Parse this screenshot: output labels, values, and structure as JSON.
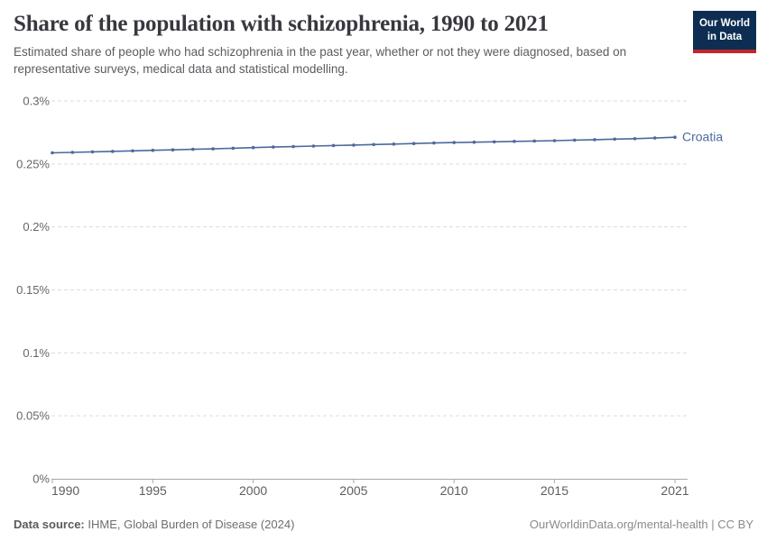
{
  "header": {
    "title": "Share of the population with schizophrenia, 1990 to 2021",
    "subtitle": "Estimated share of people who had schizophrenia in the past year, whether or not they were diagnosed, based on representative surveys, medical data and statistical modelling.",
    "logo": {
      "line1": "Our World",
      "line2": "in Data"
    }
  },
  "footer": {
    "datasource_label": "Data source:",
    "datasource_text": " IHME, Global Burden of Disease (2024)",
    "link": "OurWorldinData.org/mental-health | CC BY"
  },
  "colors": {
    "series": "#4c6a9c",
    "gridline": "#dcdcdc",
    "axis": "#a8a8a8",
    "y_tick_label": "#666666",
    "x_tick_label": "#5e5e5e",
    "title": "#37373f",
    "subtitle": "#5b5b61",
    "logo_bg": "#0d2e52",
    "logo_stripe": "#c4262e"
  },
  "chart_data": {
    "type": "line",
    "title": "Share of the population with schizophrenia, 1990 to 2021",
    "xlabel": "",
    "ylabel": "",
    "unit": "%",
    "xlim": [
      1990,
      2021
    ],
    "ylim": [
      0,
      0.3
    ],
    "grid": "horizontal-dashed",
    "legend_position": "end-of-line-label",
    "x": [
      1990,
      1991,
      1992,
      1993,
      1994,
      1995,
      1996,
      1997,
      1998,
      1999,
      2000,
      2001,
      2002,
      2003,
      2004,
      2005,
      2006,
      2007,
      2008,
      2009,
      2010,
      2011,
      2012,
      2013,
      2014,
      2015,
      2016,
      2017,
      2018,
      2019,
      2020,
      2021
    ],
    "series": [
      {
        "name": "Croatia",
        "color": "#4c6a9c",
        "values": [
          0.2588,
          0.2592,
          0.2596,
          0.26,
          0.2604,
          0.2608,
          0.2612,
          0.2616,
          0.262,
          0.2625,
          0.263,
          0.2634,
          0.2638,
          0.2642,
          0.2646,
          0.265,
          0.2654,
          0.2658,
          0.2662,
          0.2666,
          0.267,
          0.2673,
          0.2676,
          0.2679,
          0.2682,
          0.2685,
          0.2689,
          0.2693,
          0.2697,
          0.2701,
          0.2706,
          0.2712
        ]
      }
    ],
    "y_ticks": [
      {
        "value": 0,
        "label": "0%"
      },
      {
        "value": 0.05,
        "label": "0.05%"
      },
      {
        "value": 0.1,
        "label": "0.1%"
      },
      {
        "value": 0.15,
        "label": "0.15%"
      },
      {
        "value": 0.2,
        "label": "0.2%"
      },
      {
        "value": 0.25,
        "label": "0.25%"
      },
      {
        "value": 0.3,
        "label": "0.3%"
      }
    ],
    "x_ticks": [
      {
        "value": 1990,
        "label": "1990"
      },
      {
        "value": 1995,
        "label": "1995"
      },
      {
        "value": 2000,
        "label": "2000"
      },
      {
        "value": 2005,
        "label": "2005"
      },
      {
        "value": 2010,
        "label": "2010"
      },
      {
        "value": 2015,
        "label": "2015"
      },
      {
        "value": 2021,
        "label": "2021"
      }
    ]
  }
}
